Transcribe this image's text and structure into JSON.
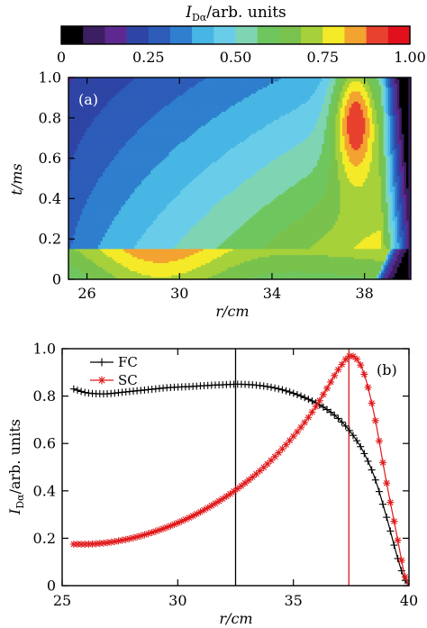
{
  "chart_data": [
    {
      "type": "heatmap",
      "panel_label": "(a)",
      "colorbar": {
        "title_main": "I",
        "title_sub": "Dα",
        "title_rest": "/arb. units",
        "ticks": [
          "0",
          "0.25",
          "0.50",
          "0.75",
          "1.00"
        ],
        "tick_values": [
          0,
          0.25,
          0.5,
          0.75,
          1.0
        ],
        "levels": 16,
        "colors": [
          "#000000",
          "#3c1e63",
          "#5d2990",
          "#2f45a5",
          "#2d5cb9",
          "#2f7fce",
          "#48b6e4",
          "#69cdea",
          "#7fd5b3",
          "#6fc65f",
          "#79c24d",
          "#a6d13a",
          "#f4ea28",
          "#f3a330",
          "#e8412f",
          "#e1101c"
        ]
      },
      "xlabel": "r/cm",
      "ylabel": "t/ms",
      "xlim": [
        25.2,
        40.0
      ],
      "ylim": [
        0,
        1.0
      ],
      "xticks": [
        26,
        30,
        34,
        38
      ],
      "xtick_labels": [
        "26",
        "30",
        "34",
        "38"
      ],
      "yticks": [
        0,
        0.2,
        0.4,
        0.6,
        0.8,
        1.0
      ],
      "ytick_labels": [
        "0",
        "0.2",
        "0.4",
        "0.6",
        "0.8",
        "1.0"
      ],
      "features": {
        "transition_time_ms": 0.15,
        "peak_r_cm": 37.6,
        "peak_t_ms": 0.8,
        "edge_r_cm": 39.6
      }
    },
    {
      "type": "line",
      "panel_label": "(b)",
      "xlabel": "r/cm",
      "ylabel_main": "I",
      "ylabel_sub": "Dα",
      "ylabel_rest": "/arb. units",
      "xlim": [
        25,
        40
      ],
      "ylim": [
        0,
        1.0
      ],
      "xticks": [
        25,
        30,
        35,
        40
      ],
      "xtick_labels": [
        "25",
        "30",
        "35",
        "40"
      ],
      "yticks": [
        0,
        0.2,
        0.4,
        0.6,
        0.8,
        1.0
      ],
      "ytick_labels": [
        "0",
        "0.2",
        "0.4",
        "0.6",
        "0.8",
        "1.0"
      ],
      "x": [
        25.5,
        26,
        26.5,
        27,
        27.5,
        28,
        28.5,
        29,
        29.5,
        30,
        30.5,
        31,
        31.5,
        32,
        32.5,
        33,
        33.5,
        34,
        34.5,
        35,
        35.5,
        36,
        36.5,
        37,
        37.5,
        38,
        38.5,
        39,
        39.5,
        39.8,
        40
      ],
      "series": [
        {
          "name": "FC",
          "color": "#000000",
          "marker": "plus",
          "values": [
            0.83,
            0.815,
            0.81,
            0.81,
            0.815,
            0.82,
            0.825,
            0.83,
            0.835,
            0.838,
            0.84,
            0.843,
            0.846,
            0.848,
            0.85,
            0.849,
            0.845,
            0.838,
            0.827,
            0.812,
            0.793,
            0.77,
            0.74,
            0.7,
            0.645,
            0.57,
            0.46,
            0.3,
            0.12,
            0.03,
            0.0
          ]
        },
        {
          "name": "SC",
          "color": "#e0191b",
          "marker": "asterisk",
          "values": [
            0.175,
            0.175,
            0.177,
            0.182,
            0.19,
            0.2,
            0.213,
            0.228,
            0.245,
            0.265,
            0.287,
            0.312,
            0.34,
            0.37,
            0.403,
            0.44,
            0.48,
            0.525,
            0.575,
            0.63,
            0.69,
            0.76,
            0.84,
            0.92,
            0.97,
            0.91,
            0.72,
            0.45,
            0.2,
            0.05,
            0.0
          ]
        }
      ],
      "vlines": [
        {
          "x": 32.5,
          "color": "#000000"
        },
        {
          "x": 37.4,
          "color": "#e0191b"
        }
      ]
    }
  ]
}
